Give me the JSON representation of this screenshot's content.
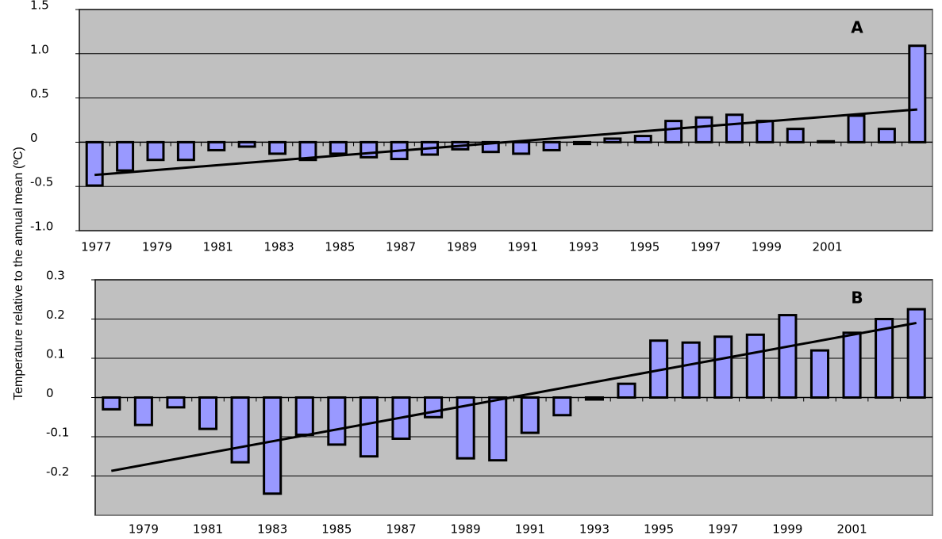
{
  "chart_data": [
    {
      "type": "bar",
      "annotation": "A",
      "color": "#9999ff",
      "grid": true,
      "y_label": "Temperature relative to the annual mean (ºC)",
      "categories": [
        "1977",
        null,
        "1979",
        null,
        "1981",
        null,
        "1983",
        null,
        "1985",
        null,
        "1987",
        null,
        "1989",
        null,
        "1991",
        null,
        "1993",
        null,
        "1995",
        null,
        "1997",
        null,
        "1999",
        null,
        "2001",
        null,
        null,
        null
      ],
      "values": [
        -0.49,
        -0.32,
        -0.2,
        -0.2,
        -0.09,
        -0.05,
        -0.13,
        -0.2,
        -0.13,
        -0.17,
        -0.19,
        -0.14,
        -0.08,
        -0.11,
        -0.13,
        -0.09,
        -0.02,
        0.04,
        0.07,
        0.24,
        0.28,
        0.31,
        0.24,
        0.15,
        0.01,
        0.3,
        0.15,
        1.09
      ],
      "trend": {
        "start": -0.37,
        "end": 0.37
      },
      "ylim": [
        -1,
        1.5
      ],
      "yticks": [
        1.5,
        {
          "value": 1,
          "label": "1.0"
        },
        0.5,
        0,
        -0.5,
        {
          "value": -1,
          "label": "-1.0"
        }
      ]
    },
    {
      "type": "bar",
      "annotation": "B",
      "color": "#9999ff",
      "grid": true,
      "categories": [
        null,
        "1979",
        null,
        "1981",
        null,
        "1983",
        null,
        "1985",
        null,
        "1987",
        null,
        "1989",
        null,
        "1991",
        null,
        "1993",
        null,
        "1995",
        null,
        "1997",
        null,
        "1999",
        null,
        "2001",
        null,
        null
      ],
      "values": [
        -0.03,
        -0.07,
        -0.025,
        -0.08,
        -0.165,
        -0.245,
        -0.095,
        -0.12,
        -0.15,
        -0.105,
        -0.05,
        -0.155,
        -0.16,
        -0.09,
        -0.045,
        -0.005,
        0.035,
        0.145,
        0.14,
        0.155,
        0.16,
        0.21,
        0.12,
        0.165,
        0.2,
        0.225
      ],
      "trend": {
        "start": -0.187,
        "end": 0.19
      },
      "ylim": [
        -0.3,
        0.3
      ],
      "yticks": [
        0.3,
        0.2,
        0.1,
        0,
        -0.1,
        -0.2
      ]
    }
  ]
}
